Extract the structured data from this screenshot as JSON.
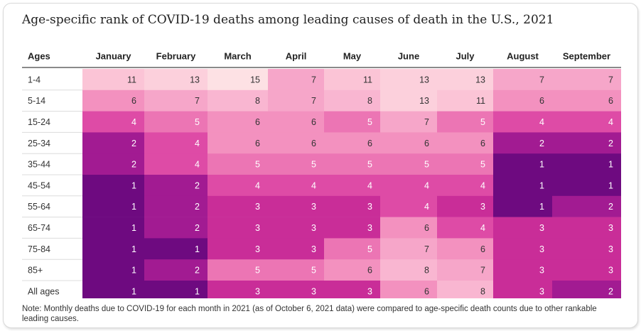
{
  "title": "Age-specific rank of COVID-19 deaths among leading causes of death in the U.S., 2021",
  "note": "Note: Monthly deaths due to COVID-19 for each month in 2021 (as of October 6, 2021 data) were compared to age-specific death counts due to other rankable leading causes.",
  "chart_data": {
    "type": "heatmap",
    "title": "Age-specific rank of COVID-19 deaths among leading causes of death in the U.S., 2021",
    "row_header": "Ages",
    "columns": [
      "January",
      "February",
      "March",
      "April",
      "May",
      "June",
      "July",
      "August",
      "September"
    ],
    "rows": [
      "1-4",
      "5-14",
      "15-24",
      "25-34",
      "35-44",
      "45-54",
      "55-64",
      "65-74",
      "75-84",
      "85+",
      "All ages"
    ],
    "values": [
      [
        11,
        13,
        15,
        7,
        11,
        13,
        13,
        7,
        7
      ],
      [
        6,
        7,
        8,
        7,
        8,
        13,
        11,
        6,
        6
      ],
      [
        4,
        5,
        6,
        6,
        5,
        7,
        5,
        4,
        4
      ],
      [
        2,
        4,
        6,
        6,
        6,
        6,
        6,
        2,
        2
      ],
      [
        2,
        4,
        5,
        5,
        5,
        5,
        5,
        1,
        1
      ],
      [
        1,
        2,
        4,
        4,
        4,
        4,
        4,
        1,
        1
      ],
      [
        1,
        2,
        3,
        3,
        3,
        4,
        3,
        1,
        2
      ],
      [
        1,
        2,
        3,
        3,
        3,
        6,
        4,
        3,
        3
      ],
      [
        1,
        1,
        3,
        3,
        5,
        7,
        6,
        3,
        3
      ],
      [
        1,
        2,
        5,
        5,
        6,
        8,
        7,
        3,
        3
      ],
      [
        1,
        1,
        3,
        3,
        3,
        6,
        8,
        3,
        2
      ]
    ],
    "color_scale": {
      "1": "#6e0a80",
      "2": "#a21b92",
      "3": "#c92d98",
      "4": "#de4ba6",
      "5": "#ec75b4",
      "6": "#f391bf",
      "7": "#f6a6c9",
      "8": "#f9b6d1",
      "11": "#fbc4d6",
      "13": "#fcd0dc",
      "15": "#fde1e4"
    },
    "dark_text_color": "#333333",
    "light_text_color": "#ffffff"
  }
}
